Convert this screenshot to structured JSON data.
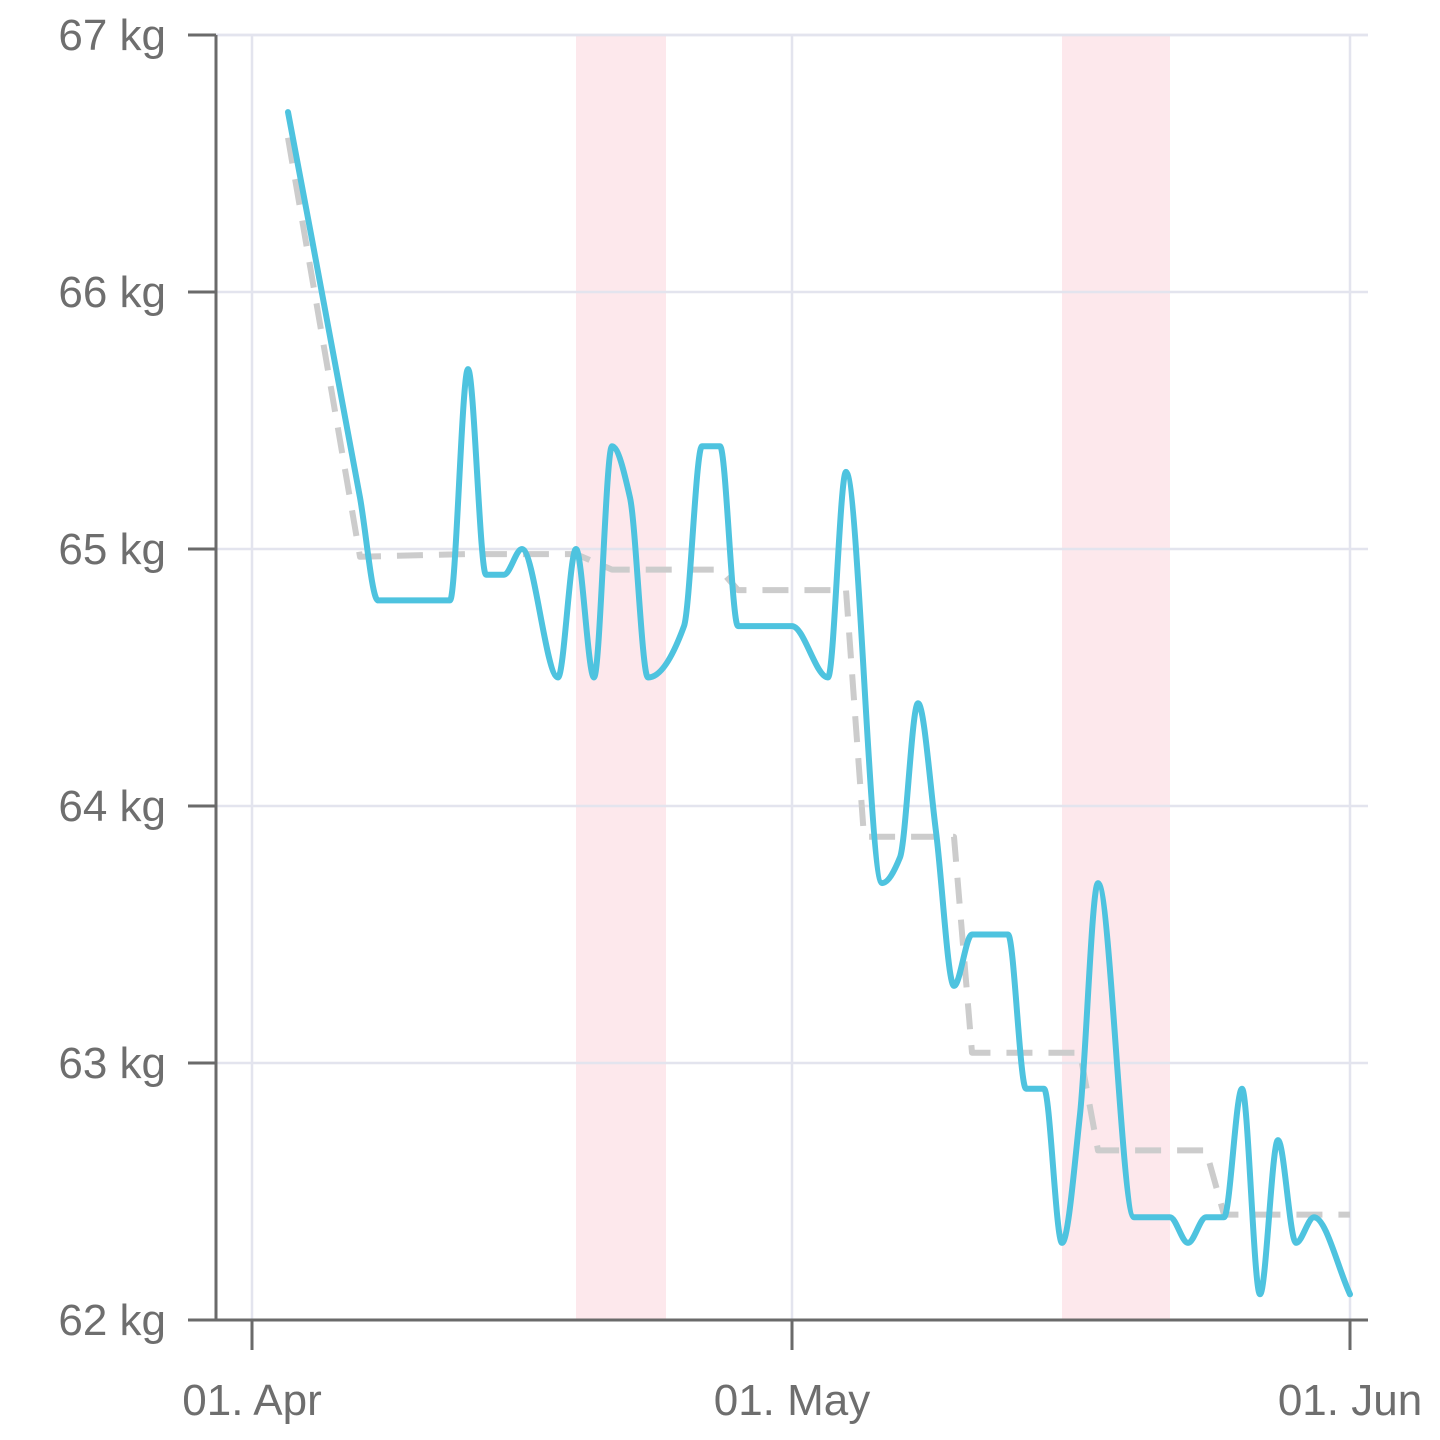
{
  "chart_data": {
    "type": "line",
    "title": "",
    "xlabel": "",
    "ylabel": "",
    "ylim": [
      62,
      67
    ],
    "xlim": [
      "2024-03-30",
      "2024-06-02"
    ],
    "y_ticks": [
      {
        "value": 62,
        "label": "62 kg"
      },
      {
        "value": 63,
        "label": "63 kg"
      },
      {
        "value": 64,
        "label": "64 kg"
      },
      {
        "value": 65,
        "label": "65 kg"
      },
      {
        "value": 66,
        "label": "66 kg"
      },
      {
        "value": 67,
        "label": "67 kg"
      }
    ],
    "x_ticks": [
      {
        "value": "2024-04-01",
        "label": "01. Apr"
      },
      {
        "value": "2024-05-01",
        "label": "01. May"
      },
      {
        "value": "2024-06-01",
        "label": "01. Jun"
      }
    ],
    "grid": true,
    "legend": "none",
    "highlight_bands": [
      {
        "from": "2024-04-19",
        "to": "2024-04-24",
        "color": "#fde8ec"
      },
      {
        "from": "2024-05-16",
        "to": "2024-05-22",
        "color": "#fde8ec"
      }
    ],
    "series": [
      {
        "color": "#4ec3df",
        "style": "solid",
        "points": [
          [
            "2024-04-03",
            66.7
          ],
          [
            "2024-04-07",
            65.2
          ],
          [
            "2024-04-08",
            64.8
          ],
          [
            "2024-04-12",
            64.8
          ],
          [
            "2024-04-13",
            65.7
          ],
          [
            "2024-04-14",
            64.9
          ],
          [
            "2024-04-15",
            64.9
          ],
          [
            "2024-04-16",
            65.0
          ],
          [
            "2024-04-18",
            64.5
          ],
          [
            "2024-04-19",
            65.0
          ],
          [
            "2024-04-20",
            64.5
          ],
          [
            "2024-04-21",
            65.4
          ],
          [
            "2024-04-22",
            65.2
          ],
          [
            "2024-04-23",
            64.5
          ],
          [
            "2024-04-25",
            64.7
          ],
          [
            "2024-04-26",
            65.4
          ],
          [
            "2024-04-27",
            65.4
          ],
          [
            "2024-04-28",
            64.7
          ],
          [
            "2024-05-01",
            64.7
          ],
          [
            "2024-05-03",
            64.5
          ],
          [
            "2024-05-04",
            65.3
          ],
          [
            "2024-05-06",
            63.7
          ],
          [
            "2024-05-07",
            63.8
          ],
          [
            "2024-05-08",
            64.4
          ],
          [
            "2024-05-09",
            63.9
          ],
          [
            "2024-05-10",
            63.3
          ],
          [
            "2024-05-11",
            63.5
          ],
          [
            "2024-05-13",
            63.5
          ],
          [
            "2024-05-14",
            62.9
          ],
          [
            "2024-05-15",
            62.9
          ],
          [
            "2024-05-16",
            62.3
          ],
          [
            "2024-05-17",
            62.8
          ],
          [
            "2024-05-18",
            63.7
          ],
          [
            "2024-05-20",
            62.4
          ],
          [
            "2024-05-22",
            62.4
          ],
          [
            "2024-05-23",
            62.3
          ],
          [
            "2024-05-24",
            62.4
          ],
          [
            "2024-05-25",
            62.4
          ],
          [
            "2024-05-26",
            62.9
          ],
          [
            "2024-05-27",
            62.1
          ],
          [
            "2024-05-28",
            62.7
          ],
          [
            "2024-05-29",
            62.3
          ],
          [
            "2024-05-30",
            62.4
          ],
          [
            "2024-06-01",
            62.1
          ]
        ]
      },
      {
        "color": "#cccccc",
        "style": "dashed",
        "points": [
          [
            "2024-04-03",
            66.6
          ],
          [
            "2024-04-07",
            64.97
          ],
          [
            "2024-04-13",
            64.98
          ],
          [
            "2024-04-19",
            64.98
          ],
          [
            "2024-04-21",
            64.92
          ],
          [
            "2024-04-27",
            64.92
          ],
          [
            "2024-04-28",
            64.84
          ],
          [
            "2024-05-04",
            64.84
          ],
          [
            "2024-05-05",
            63.88
          ],
          [
            "2024-05-10",
            63.88
          ],
          [
            "2024-05-11",
            63.04
          ],
          [
            "2024-05-17",
            63.04
          ],
          [
            "2024-05-18",
            62.66
          ],
          [
            "2024-05-24",
            62.66
          ],
          [
            "2024-05-25",
            62.41
          ],
          [
            "2024-06-01",
            62.41
          ]
        ]
      }
    ]
  }
}
